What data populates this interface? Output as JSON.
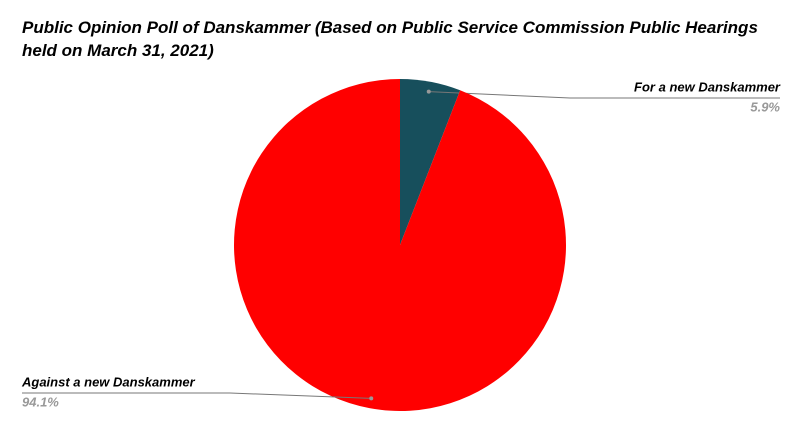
{
  "chart_data": {
    "type": "pie",
    "title": "Public Opinion Poll of Danskammer (Based on Public Service Commission Public Hearings held on March 31, 2021)",
    "categories": [
      "For a new Danskammer",
      "Against a new Danskammer"
    ],
    "values": [
      5.9,
      94.1
    ],
    "value_labels": [
      "5.9%",
      "94.1%"
    ],
    "colors": [
      "#174f5c",
      "#ff0000"
    ]
  }
}
